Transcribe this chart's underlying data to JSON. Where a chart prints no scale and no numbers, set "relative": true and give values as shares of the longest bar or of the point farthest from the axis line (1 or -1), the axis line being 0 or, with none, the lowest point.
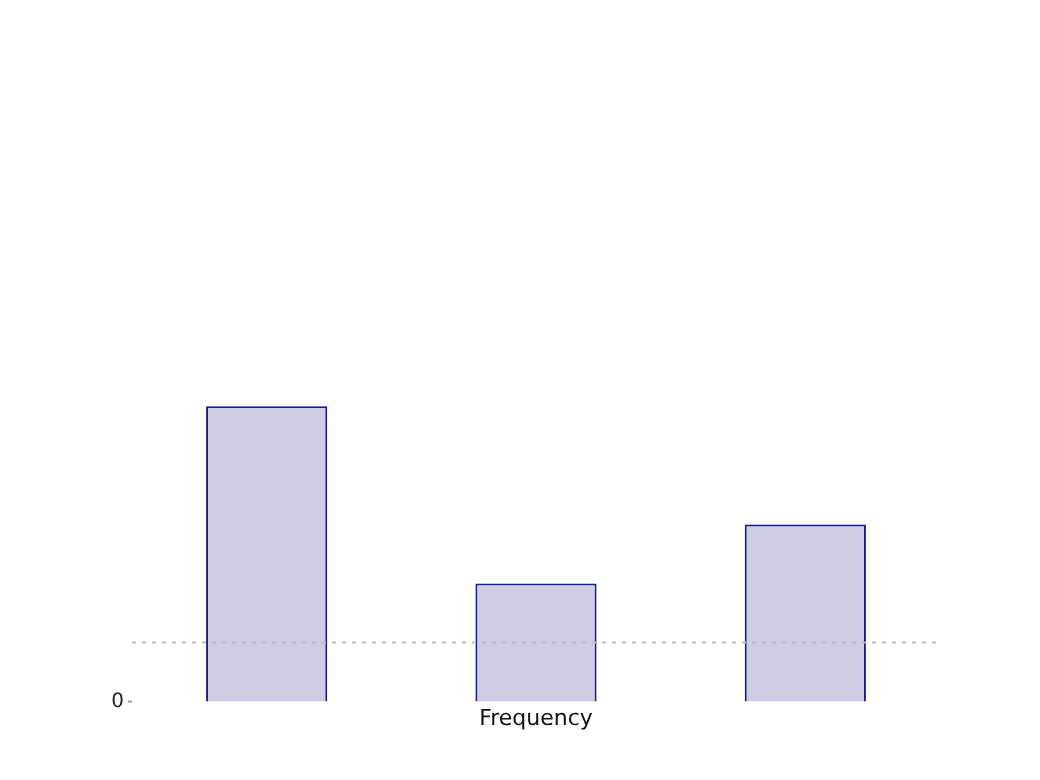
{
  "chart_data": {
    "type": "bar",
    "xlabel": "Frequency",
    "categories": [
      null,
      null,
      null
    ],
    "values": [
      1,
      0.4,
      0.6
    ],
    "color": "#cccce4",
    "relative": true,
    "grid": false,
    "legend": false,
    "ref_lines": [
      {
        "axis": "y",
        "value": 0.2,
        "color": "#bbbbbb",
        "line_style": "dotted"
      }
    ],
    "annotations": [
      "0"
    ]
  }
}
